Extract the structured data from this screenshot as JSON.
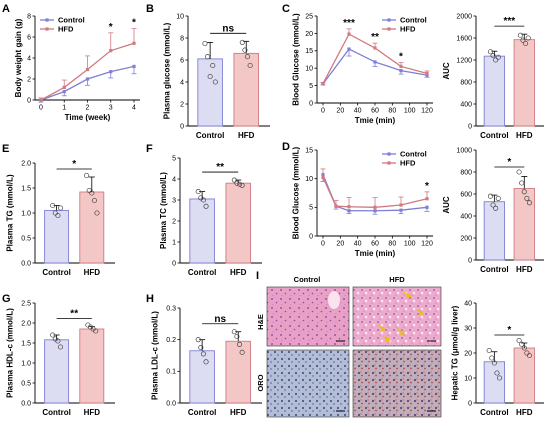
{
  "colors": {
    "control": "#7f7fd5",
    "hfd": "#d07a80",
    "control_fill": "#dcdcf2",
    "hfd_fill": "#f3c7c5",
    "black": "#000000"
  },
  "chart_data": [
    {
      "id": "A",
      "type": "line",
      "ylabel": "Body weight gain (g)",
      "xlabel": "Time (week)",
      "x": [
        0,
        1,
        2,
        3,
        4
      ],
      "xticks": [
        "0",
        "1",
        "2",
        "3",
        "4"
      ],
      "yticks": [
        "0",
        "2",
        "4",
        "6",
        "8"
      ],
      "ylim": [
        0,
        8
      ],
      "legend": [
        "Control",
        "HFD"
      ],
      "series": [
        {
          "name": "Control",
          "values": [
            0,
            0.8,
            2.0,
            2.7,
            3.2
          ],
          "err": [
            0.2,
            0.4,
            0.6,
            0.6,
            0.7
          ]
        },
        {
          "name": "HFD",
          "values": [
            0,
            1.2,
            2.9,
            4.7,
            5.4
          ],
          "err": [
            0.2,
            0.7,
            1.3,
            1.7,
            1.4
          ]
        }
      ],
      "annotations": [
        {
          "x": 3,
          "text": "*"
        },
        {
          "x": 4,
          "text": "*"
        }
      ]
    },
    {
      "id": "B",
      "type": "bar",
      "ylabel": "Plasma glucose (mmol/L)",
      "categories": [
        "Control",
        "HFD"
      ],
      "values": [
        6.1,
        6.6
      ],
      "err": [
        1.5,
        1.1
      ],
      "yticks": [
        "0",
        "2",
        "4",
        "6",
        "8",
        "10"
      ],
      "ylim": [
        0,
        10
      ],
      "points": [
        [
          7.5,
          6.3,
          4.5,
          5.5,
          4.0
        ],
        [
          7.6,
          6.9,
          6.3,
          5.5
        ]
      ],
      "sig": "ns"
    },
    {
      "id": "C",
      "type": "line",
      "ylabel": "Blood Glucose (mmol/L)",
      "xlabel": "Tmie (min)",
      "x": [
        0,
        30,
        60,
        90,
        120
      ],
      "xticks": [
        "0",
        "20",
        "40",
        "60",
        "80",
        "100",
        "120"
      ],
      "yticks": [
        "0",
        "5",
        "10",
        "15",
        "20",
        "25"
      ],
      "ylim": [
        0,
        25
      ],
      "legend": [
        "Control",
        "HFD"
      ],
      "series": [
        {
          "name": "Control",
          "values": [
            5.5,
            15.5,
            11.8,
            9.3,
            8.0
          ],
          "err": [
            0.3,
            2.0,
            1.3,
            1.0,
            0.6
          ]
        },
        {
          "name": "HFD",
          "values": [
            5.6,
            19.8,
            15.8,
            10.5,
            8.5
          ],
          "err": [
            0.3,
            1.5,
            1.4,
            1.1,
            0.7
          ]
        }
      ],
      "annotations": [
        {
          "x": 30,
          "text": "***"
        },
        {
          "x": 60,
          "text": "**"
        },
        {
          "x": 90,
          "text": "*"
        }
      ]
    },
    {
      "id": "C_auc",
      "type": "bar",
      "ylabel": "AUC",
      "categories": [
        "Control",
        "HFD"
      ],
      "values": [
        1270,
        1570
      ],
      "err": [
        90,
        100
      ],
      "yticks": [
        "0",
        "400",
        "800",
        "1200",
        "1600",
        "2000"
      ],
      "ylim": [
        0,
        2000
      ],
      "points": [
        [
          1350,
          1280,
          1200,
          1250
        ],
        [
          1650,
          1560,
          1500,
          1600
        ]
      ],
      "sig": "***"
    },
    {
      "id": "D",
      "type": "line",
      "ylabel": "Blood Glucose (mmol/L)",
      "xlabel": "Tmie (min)",
      "x": [
        0,
        15,
        30,
        60,
        90,
        120
      ],
      "xticks": [
        "0",
        "20",
        "40",
        "60",
        "80",
        "100",
        "120"
      ],
      "yticks": [
        "0",
        "5",
        "10",
        "15"
      ],
      "ylim": [
        0,
        15
      ],
      "legend": [
        "Control",
        "HFD"
      ],
      "series": [
        {
          "name": "Control",
          "values": [
            10.7,
            5.2,
            4.4,
            4.4,
            4.5,
            5.0
          ],
          "err": [
            1.2,
            0.5,
            0.5,
            0.6,
            0.6,
            0.7
          ]
        },
        {
          "name": "HFD",
          "values": [
            10.2,
            5.2,
            5.1,
            5.0,
            5.4,
            6.5
          ],
          "err": [
            1.5,
            1.0,
            1.6,
            1.7,
            1.4,
            1.2
          ]
        }
      ],
      "annotations": [
        {
          "x": 120,
          "text": "*"
        }
      ]
    },
    {
      "id": "D_auc",
      "type": "bar",
      "ylabel": "AUC",
      "categories": [
        "Control",
        "HFD"
      ],
      "values": [
        530,
        650
      ],
      "err": [
        60,
        110
      ],
      "yticks": [
        "0",
        "200",
        "400",
        "600",
        "800",
        "1000"
      ],
      "ylim": [
        0,
        1000
      ],
      "points": [
        [
          580,
          500,
          470,
          560
        ],
        [
          800,
          700,
          620,
          560,
          520
        ]
      ],
      "sig": "*"
    },
    {
      "id": "E",
      "type": "bar",
      "ylabel": "Plasma TG (mmol/L)",
      "categories": [
        "Control",
        "HFD"
      ],
      "values": [
        1.05,
        1.42
      ],
      "err": [
        0.1,
        0.3
      ],
      "yticks": [
        "0.0",
        "0.5",
        "1.0",
        "1.5",
        "2.0"
      ],
      "ylim": [
        0,
        2
      ],
      "points": [
        [
          1.15,
          1.0,
          0.95,
          1.1
        ],
        [
          1.75,
          1.45,
          1.4,
          1.25,
          1.0
        ]
      ],
      "sig": "*"
    },
    {
      "id": "F",
      "type": "bar",
      "ylabel": "Plasma TC (mmol/L)",
      "categories": [
        "Control",
        "HFD"
      ],
      "values": [
        3.05,
        3.8
      ],
      "err": [
        0.35,
        0.15
      ],
      "yticks": [
        "0",
        "1",
        "2",
        "3",
        "4",
        "5"
      ],
      "ylim": [
        0,
        5
      ],
      "points": [
        [
          3.4,
          3.1,
          3.0,
          2.7
        ],
        [
          3.95,
          3.8,
          3.75,
          3.7
        ]
      ],
      "sig": "**"
    },
    {
      "id": "G",
      "type": "bar",
      "ylabel": "Plasma HDL-c (mmol/L)",
      "categories": [
        "Control",
        "HFD"
      ],
      "values": [
        1.58,
        1.85
      ],
      "err": [
        0.12,
        0.06
      ],
      "yticks": [
        "0.0",
        "0.5",
        "1.0",
        "1.5",
        "2.0",
        "2.5"
      ],
      "ylim": [
        0,
        2.5
      ],
      "points": [
        [
          1.7,
          1.6,
          1.55,
          1.4
        ],
        [
          1.95,
          1.9,
          1.85,
          1.8
        ]
      ],
      "sig": "**"
    },
    {
      "id": "H",
      "type": "bar",
      "ylabel": "Plasma LDL-c (mmol/L)",
      "categories": [
        "Control",
        "HFD"
      ],
      "values": [
        0.165,
        0.195
      ],
      "err": [
        0.035,
        0.03
      ],
      "yticks": [
        "0.0",
        "0.1",
        "0.2",
        "0.3"
      ],
      "ylim": [
        0,
        0.3
      ],
      "points": [
        [
          0.2,
          0.175,
          0.155,
          0.13
        ],
        [
          0.225,
          0.21,
          0.185,
          0.16
        ]
      ],
      "sig": "ns"
    },
    {
      "id": "J",
      "type": "bar",
      "ylabel": "Hepatic TG (μmol/g liver)",
      "categories": [
        "Control",
        "HFD"
      ],
      "values": [
        16.5,
        22
      ],
      "err": [
        4,
        2
      ],
      "yticks": [
        "0",
        "10",
        "20",
        "30",
        "40"
      ],
      "ylim": [
        0,
        40
      ],
      "points": [
        [
          21,
          18,
          16,
          12,
          10
        ],
        [
          25,
          23.5,
          22,
          20,
          19
        ]
      ],
      "sig": "*"
    }
  ],
  "histology": {
    "label": "I",
    "cols": [
      "Control",
      "HFD"
    ],
    "rows": [
      "H&E",
      "ORO"
    ]
  }
}
